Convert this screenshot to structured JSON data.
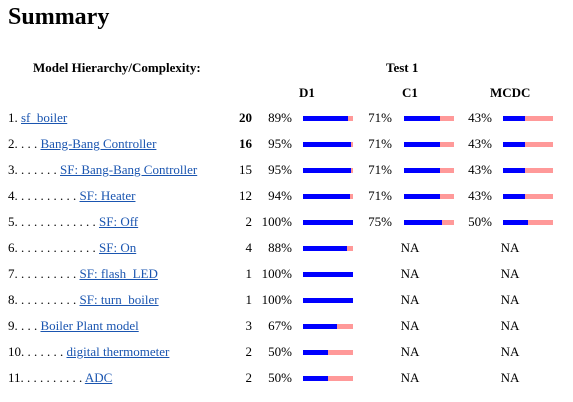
{
  "header": {
    "title": "Summary",
    "hierarchy_label": "Model Hierarchy/Complexity:",
    "test_label": "Test 1",
    "columns": [
      "D1",
      "C1",
      "MCDC"
    ]
  },
  "table": {
    "rows": [
      {
        "prefix": "1.",
        "name": "sf_boiler",
        "complexity": 20,
        "d1": {
          "value": 89,
          "label": "89%"
        },
        "c1": {
          "value": 71,
          "label": "71%"
        },
        "mcdc": {
          "value": 43,
          "label": "43%"
        }
      },
      {
        "prefix": "2. . . .",
        "name": "Bang-Bang Controller",
        "complexity": 16,
        "d1": {
          "value": 95,
          "label": "95%"
        },
        "c1": {
          "value": 71,
          "label": "71%"
        },
        "mcdc": {
          "value": 43,
          "label": "43%"
        }
      },
      {
        "prefix": "3. . . . . . .",
        "name": "SF: Bang-Bang Controller",
        "complexity": 15,
        "d1": {
          "value": 95,
          "label": "95%"
        },
        "c1": {
          "value": 71,
          "label": "71%"
        },
        "mcdc": {
          "value": 43,
          "label": "43%"
        }
      },
      {
        "prefix": "4. . . . . . . . . .",
        "name": "SF: Heater",
        "complexity": 12,
        "d1": {
          "value": 94,
          "label": "94%"
        },
        "c1": {
          "value": 71,
          "label": "71%"
        },
        "mcdc": {
          "value": 43,
          "label": "43%"
        }
      },
      {
        "prefix": "5. . . . . . . . . . . . .",
        "name": "SF: Off",
        "complexity": 2,
        "d1": {
          "value": 100,
          "label": "100%"
        },
        "c1": {
          "value": 75,
          "label": "75%"
        },
        "mcdc": {
          "value": 50,
          "label": "50%"
        }
      },
      {
        "prefix": "6. . . . . . . . . . . . .",
        "name": "SF: On",
        "complexity": 4,
        "d1": {
          "value": 88,
          "label": "88%"
        },
        "c1": "NA",
        "mcdc": "NA"
      },
      {
        "prefix": "7. . . . . . . . . .",
        "name": "SF: flash_LED",
        "complexity": 1,
        "d1": {
          "value": 100,
          "label": "100%"
        },
        "c1": "NA",
        "mcdc": "NA"
      },
      {
        "prefix": "8. . . . . . . . . .",
        "name": "SF: turn_boiler",
        "complexity": 1,
        "d1": {
          "value": 100,
          "label": "100%"
        },
        "c1": "NA",
        "mcdc": "NA"
      },
      {
        "prefix": "9. . . .",
        "name": "Boiler Plant model",
        "complexity": 3,
        "d1": {
          "value": 67,
          "label": "67%"
        },
        "c1": "NA",
        "mcdc": "NA"
      },
      {
        "prefix": "10. . . . . . .",
        "name": "digital thermometer",
        "complexity": 2,
        "d1": {
          "value": 50,
          "label": "50%"
        },
        "c1": "NA",
        "mcdc": "NA"
      },
      {
        "prefix": "11. . . . . . . . . .",
        "name": "ADC",
        "complexity": 2,
        "d1": {
          "value": 50,
          "label": "50%"
        },
        "c1": "NA",
        "mcdc": "NA"
      }
    ]
  }
}
